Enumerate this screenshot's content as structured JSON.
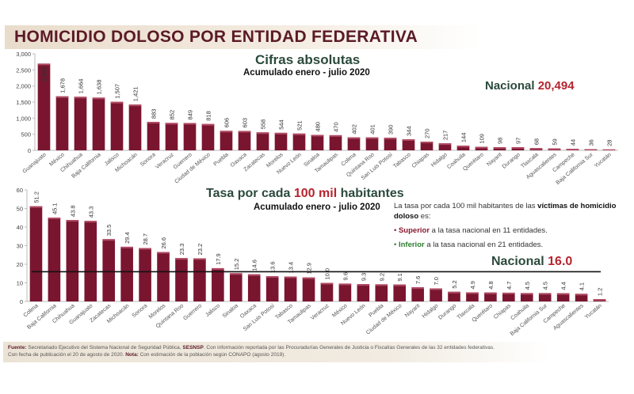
{
  "header": {
    "title": "HOMICIDIO DOLOSO POR ENTIDAD FEDERATIVA"
  },
  "top_panel": {
    "title": "Cifras absolutas",
    "subtitle": "Acumulado enero - julio 2020",
    "national_label": "Nacional",
    "national_value": "20,494"
  },
  "bottom_panel": {
    "title_part1": "Tasa por cada",
    "title_part2": "100 mil",
    "title_part3": "habitantes",
    "subtitle": "Acumulado enero - julio 2020",
    "national_label": "Nacional",
    "national_value": "16.0",
    "info_text_1": "La tasa por cada 100 mil habitantes de las",
    "info_bold": "víctimas de homicidio doloso",
    "info_text_2": "es:",
    "bullet1_bold": "Superior",
    "bullet1_text": "a la tasa nacional en 11 entidades.",
    "bullet2_bold": "Inferior",
    "bullet2_text": "a la tasa nacional en 21 entidades."
  },
  "footer": {
    "fuente_label": "Fuente:",
    "fuente_text": "Secretariado Ejecutivo del Sistema Nacional de Seguridad Pública,",
    "sesnsp": "SESNSP",
    "fuente_text2": ". Con información reportada por las Procuradurías Generales de Justicia o Fiscalías Generales de las 32 entidades federativas.",
    "fecha_text": "Con fecha de publicación el 20 de agosto de 2020.",
    "nota_label": "Nota:",
    "nota_text": "Con estimación de la población según CONAPO (agosto 2019)."
  },
  "colors": {
    "bar": "#7a1530",
    "bar_top": "#b04a63",
    "accent_red": "#b5252f",
    "green": "#2b4a3c"
  },
  "chart_data": [
    {
      "type": "bar",
      "title": "Cifras absolutas",
      "ylim": [
        0,
        3000
      ],
      "yticks": [
        0,
        500,
        1000,
        1500,
        2000,
        2500,
        3000
      ],
      "ytick_labels": [
        "0",
        "500",
        "1,000",
        "1,500",
        "2,000",
        "2,500",
        "3,000"
      ],
      "categories": [
        "Guanajuato",
        "México",
        "Chihuahua",
        "Baja California",
        "Jalisco",
        "Michoacán",
        "Sonora",
        "Veracruz",
        "Guerrero",
        "Ciudad de México",
        "Puebla",
        "Oaxaca",
        "Zacatecas",
        "Morelos",
        "Nuevo León",
        "Sinaloa",
        "Tamaulipas",
        "Colima",
        "Quintana Roo",
        "San Luis Potosí",
        "Tabasco",
        "Chiapas",
        "Hidalgo",
        "Coahuila",
        "Querétaro",
        "Nayarit",
        "Durango",
        "Tlaxcala",
        "Aguascalientes",
        "Campeche",
        "Baja California Sur",
        "Yucatán"
      ],
      "values": [
        2695,
        1678,
        1664,
        1638,
        1507,
        1421,
        883,
        852,
        849,
        818,
        606,
        603,
        558,
        544,
        521,
        480,
        470,
        402,
        401,
        390,
        344,
        270,
        217,
        144,
        109,
        98,
        97,
        68,
        59,
        44,
        36,
        28
      ],
      "value_labels": [
        "2,695",
        "1,678",
        "1,664",
        "1,638",
        "1,507",
        "1,421",
        "883",
        "852",
        "849",
        "818",
        "606",
        "603",
        "558",
        "544",
        "521",
        "480",
        "470",
        "402",
        "401",
        "390",
        "344",
        "270",
        "217",
        "144",
        "109",
        "98",
        "97",
        "68",
        "59",
        "44",
        "36",
        "28"
      ]
    },
    {
      "type": "bar",
      "title": "Tasa por cada 100 mil habitantes",
      "ylim": [
        0,
        60
      ],
      "yticks": [
        0,
        10,
        20,
        30,
        40,
        50,
        60
      ],
      "ytick_labels": [
        "0",
        "10",
        "20",
        "30",
        "40",
        "50",
        "60"
      ],
      "reference_line": 16.0,
      "categories": [
        "Colima",
        "Baja California",
        "Chihuahua",
        "Guanajuato",
        "Zacatecas",
        "Michoacán",
        "Sonora",
        "Morelos",
        "Quintana Roo",
        "Guerrero",
        "Jalisco",
        "Sinaloa",
        "Oaxaca",
        "San Luis Potosí",
        "Tabasco",
        "Tamaulipas",
        "Veracruz",
        "México",
        "Nuevo León",
        "Puebla",
        "Ciudad de México",
        "Nayarit",
        "Hidalgo",
        "Durango",
        "Tlaxcala",
        "Querétaro",
        "Chiapas",
        "Coahuila",
        "Baja California Sur",
        "Campeche",
        "Aguascalientes",
        "Yucatán"
      ],
      "values": [
        51.2,
        45.1,
        43.8,
        43.3,
        33.5,
        29.4,
        28.7,
        26.6,
        23.3,
        23.2,
        17.9,
        15.2,
        14.6,
        13.6,
        13.4,
        12.9,
        10.0,
        9.6,
        9.3,
        9.2,
        9.1,
        7.6,
        7.0,
        5.2,
        4.9,
        4.8,
        4.7,
        4.5,
        4.5,
        4.4,
        4.1,
        1.2
      ],
      "value_labels": [
        "51.2",
        "45.1",
        "43.8",
        "43.3",
        "33.5",
        "29.4",
        "28.7",
        "26.6",
        "23.3",
        "23.2",
        "17.9",
        "15.2",
        "14.6",
        "13.6",
        "13.4",
        "12.9",
        "10.0",
        "9.6",
        "9.3",
        "9.2",
        "9.1",
        "7.6",
        "7.0",
        "5.2",
        "4.9",
        "4.8",
        "4.7",
        "4.5",
        "4.5",
        "4.4",
        "4.1",
        "1.2"
      ]
    }
  ]
}
